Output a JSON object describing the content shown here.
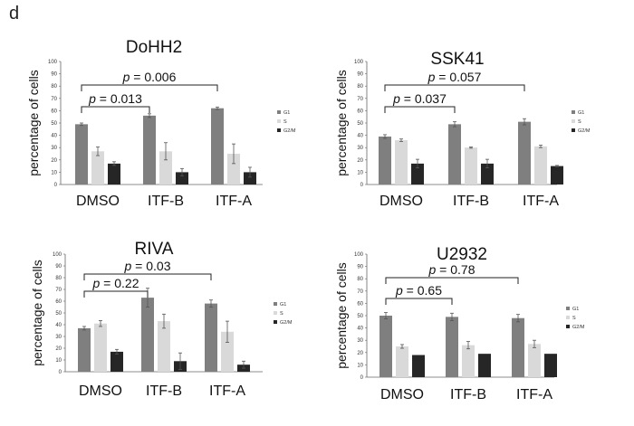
{
  "panel_label": "d",
  "colors": {
    "G1": "#7f7f7f",
    "S": "#d9d9d9",
    "G2M": "#262626"
  },
  "chart_data": [
    {
      "type": "bar",
      "title": "DoHH2",
      "ylabel": "percentage of cells",
      "ylim": [
        0,
        100
      ],
      "yticks": [
        "0",
        "10",
        "20",
        "30",
        "40",
        "50",
        "60",
        "70",
        "80",
        "90",
        "100"
      ],
      "categories": [
        "DMSO",
        "ITF-B",
        "ITF-A"
      ],
      "series": [
        {
          "name": "G1",
          "values": [
            49,
            56,
            62
          ],
          "errors": [
            1,
            1.5,
            1
          ]
        },
        {
          "name": "S",
          "values": [
            27,
            27,
            25
          ],
          "errors": [
            3.5,
            7,
            8
          ]
        },
        {
          "name": "G2/M",
          "values": [
            17,
            10,
            10
          ],
          "errors": [
            1.5,
            3,
            4
          ]
        }
      ],
      "brackets": [
        {
          "from": 0,
          "to": 1,
          "label": "p = 0.013"
        },
        {
          "from": 0,
          "to": 2,
          "label": "p = 0.006"
        }
      ],
      "legend": "right"
    },
    {
      "type": "bar",
      "title": "SSK41",
      "ylabel": "percentage of cells",
      "ylim": [
        0,
        100
      ],
      "yticks": [
        "0",
        "10",
        "20",
        "30",
        "40",
        "50",
        "60",
        "70",
        "80",
        "90",
        "100"
      ],
      "categories": [
        "DMSO",
        "ITF-B",
        "ITF-A"
      ],
      "series": [
        {
          "name": "G1",
          "values": [
            39,
            49,
            51
          ],
          "errors": [
            1.5,
            2,
            2.5
          ]
        },
        {
          "name": "S",
          "values": [
            36,
            30,
            31
          ],
          "errors": [
            1,
            0.5,
            1
          ]
        },
        {
          "name": "G2/M",
          "values": [
            17,
            17,
            15
          ],
          "errors": [
            3.5,
            3.5,
            0.5
          ]
        }
      ],
      "brackets": [
        {
          "from": 0,
          "to": 1,
          "label": "p = 0.037"
        },
        {
          "from": 0,
          "to": 2,
          "label": "p = 0.057"
        }
      ],
      "legend": "right"
    },
    {
      "type": "bar",
      "title": "RIVA",
      "ylabel": "percentage of cells",
      "ylim": [
        0,
        100
      ],
      "yticks": [
        "0",
        "10",
        "20",
        "30",
        "40",
        "50",
        "60",
        "70",
        "80",
        "90",
        "100"
      ],
      "categories": [
        "DMSO",
        "ITF-B",
        "ITF-A"
      ],
      "series": [
        {
          "name": "G1",
          "values": [
            37,
            63,
            58
          ],
          "errors": [
            1.5,
            8,
            3
          ]
        },
        {
          "name": "S",
          "values": [
            41,
            43,
            34
          ],
          "errors": [
            2.5,
            6,
            9
          ]
        },
        {
          "name": "G2/M",
          "values": [
            17,
            9,
            6
          ],
          "errors": [
            2,
            7,
            3
          ]
        }
      ],
      "brackets": [
        {
          "from": 0,
          "to": 1,
          "label": "p = 0.22"
        },
        {
          "from": 0,
          "to": 2,
          "label": "p = 0.03"
        }
      ],
      "legend": "right"
    },
    {
      "type": "bar",
      "title": "U2932",
      "ylabel": "percentage of cells",
      "ylim": [
        0,
        100
      ],
      "yticks": [
        "0",
        "10",
        "20",
        "30",
        "40",
        "50",
        "60",
        "70",
        "80",
        "90",
        "100"
      ],
      "categories": [
        "DMSO",
        "ITF-B",
        "ITF-A"
      ],
      "series": [
        {
          "name": "G1",
          "values": [
            50,
            49,
            48
          ],
          "errors": [
            2.5,
            3,
            3
          ]
        },
        {
          "name": "S",
          "values": [
            25,
            26,
            27
          ],
          "errors": [
            1.5,
            3,
            3
          ]
        },
        {
          "name": "G2/M",
          "values": [
            18,
            19,
            19
          ],
          "errors": [
            0,
            0,
            0
          ]
        }
      ],
      "brackets": [
        {
          "from": 0,
          "to": 1,
          "label": "p = 0.65"
        },
        {
          "from": 0,
          "to": 2,
          "label": "p = 0.78"
        }
      ],
      "legend": "right"
    }
  ]
}
